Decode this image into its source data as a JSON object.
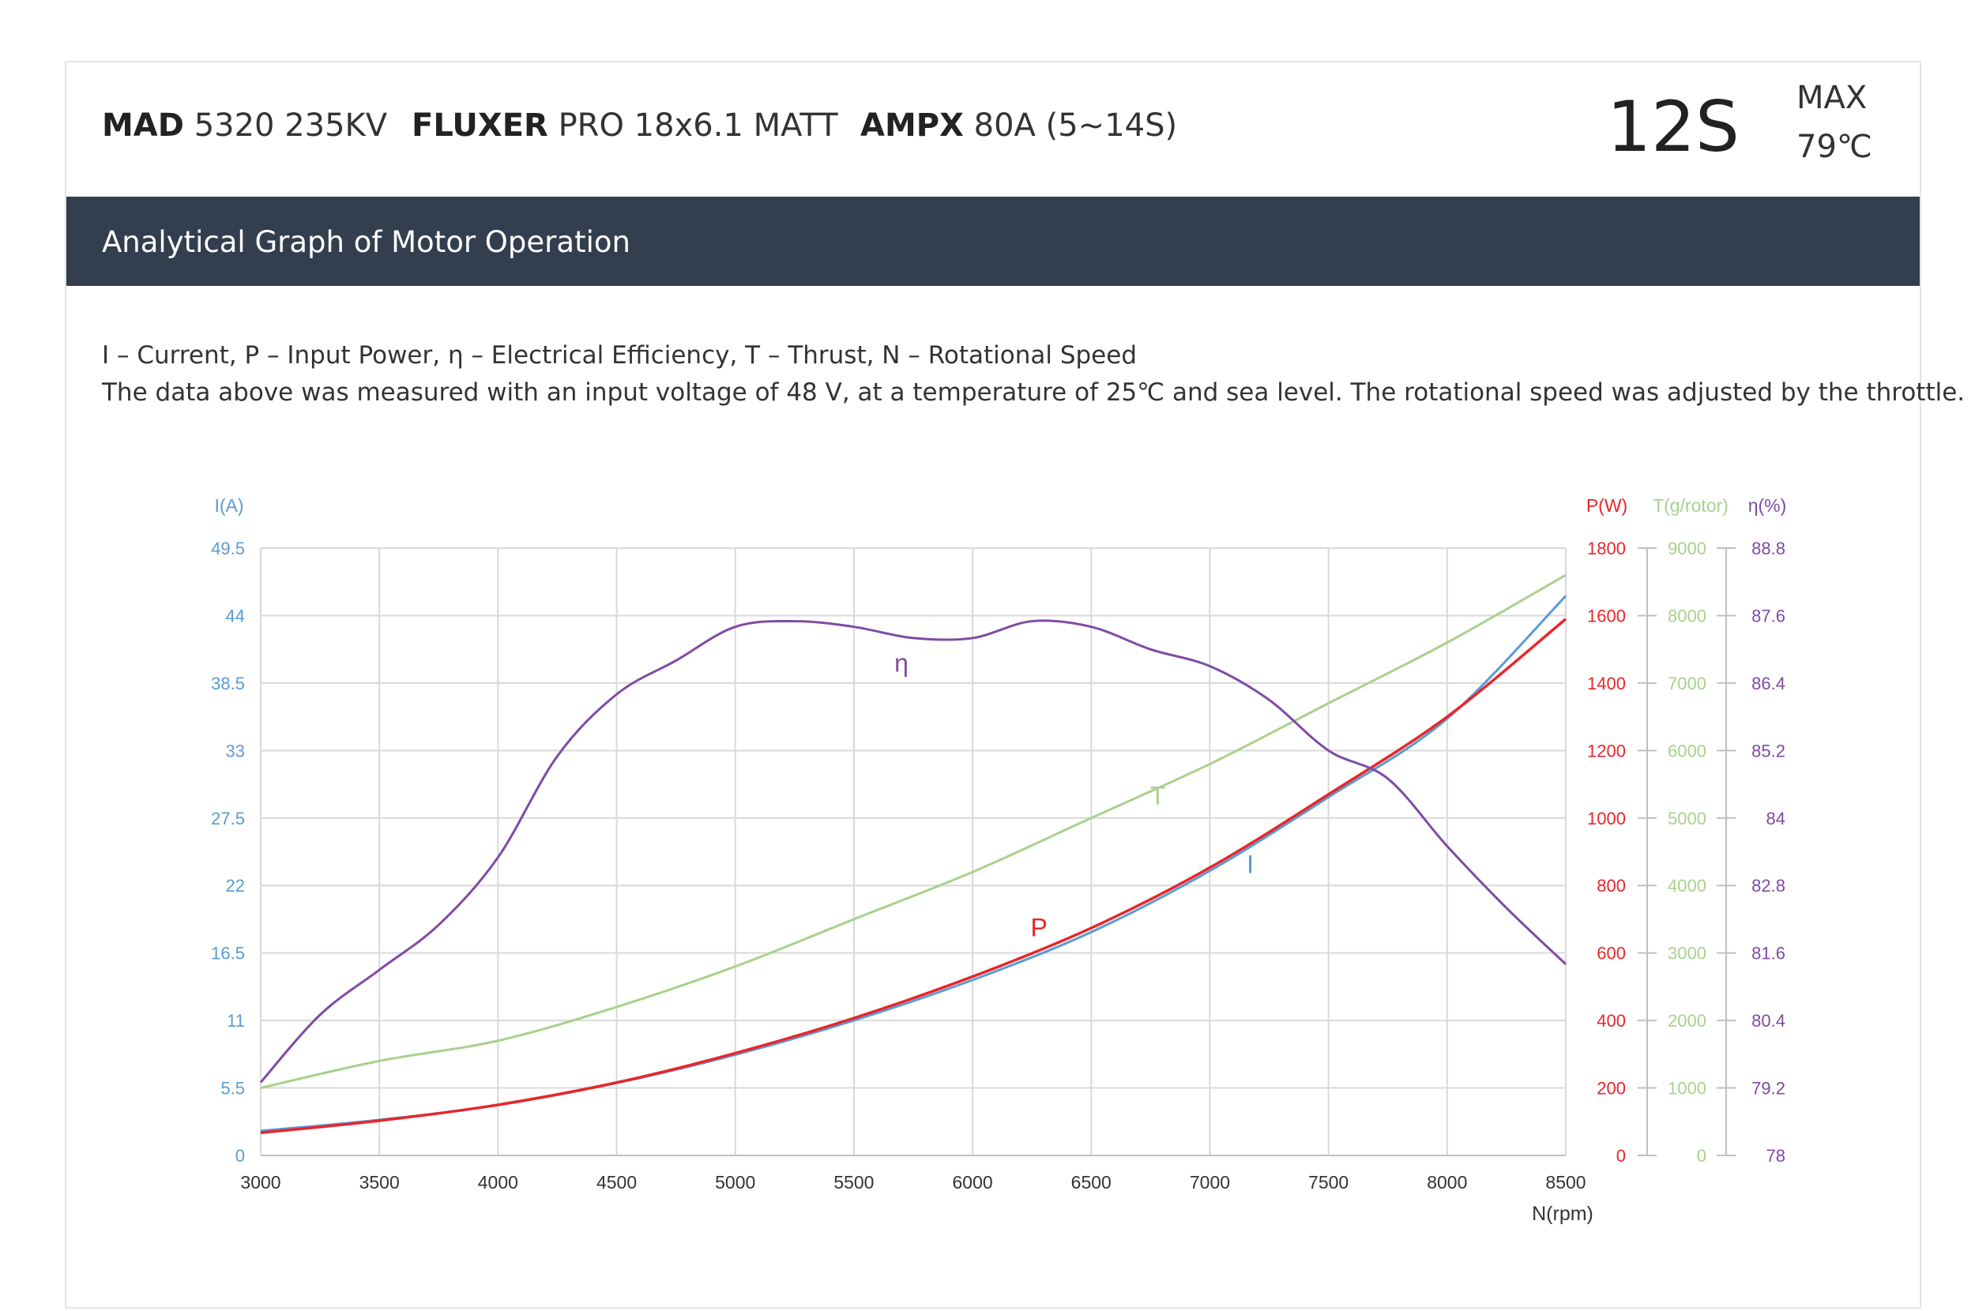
{
  "header": {
    "motor": {
      "brand": "MAD",
      "model": "5320 235KV"
    },
    "prop": {
      "brand": "FLUXER",
      "model": "PRO 18x6.1 MATT"
    },
    "esc": {
      "brand": "AMPX",
      "model": "80A (5~14S)"
    },
    "cells": "12S",
    "max_label": "MAX",
    "max_temp": "79℃"
  },
  "section_title": "Analytical Graph of Motor Operation",
  "legend_text": "I – Current, P – Input Power, η – Electrical Efficiency, T – Thrust,   N – Rotational Speed",
  "note_text": "The data above was measured with an input voltage of 48 V, at a temperature of 25℃ and sea level. The rotational speed was adjusted by the throttle.",
  "colors": {
    "current": "#5b9bd5",
    "power": "#e8262a",
    "thrust": "#a9d18e",
    "efficiency": "#7f4ba3",
    "band": "#333e4e",
    "grid": "#d9d9d9"
  },
  "chart_data": {
    "type": "line",
    "xlabel": "N(rpm)",
    "xlim": [
      3000,
      8500
    ],
    "x_ticks": [
      "3000",
      "3500",
      "4000",
      "4500",
      "5000",
      "5500",
      "6000",
      "6500",
      "7000",
      "7500",
      "8000",
      "8500"
    ],
    "axes": {
      "current": {
        "label": "I(A)",
        "range": [
          0,
          49.5
        ],
        "ticks": [
          "0",
          "5.5",
          "11",
          "16.5",
          "22",
          "27.5",
          "33",
          "38.5",
          "44",
          "49.5"
        ]
      },
      "power": {
        "label": "P(W)",
        "range": [
          0,
          1800
        ],
        "ticks": [
          "0",
          "200",
          "400",
          "600",
          "800",
          "1000",
          "1200",
          "1400",
          "1600",
          "1800"
        ]
      },
      "thrust": {
        "label": "T(g/rotor)",
        "range": [
          0,
          9000
        ],
        "ticks": [
          "0",
          "1000",
          "2000",
          "3000",
          "4000",
          "5000",
          "6000",
          "7000",
          "8000",
          "9000"
        ]
      },
      "efficiency": {
        "label": "η(%)",
        "range": [
          78,
          88.8
        ],
        "ticks": [
          "78",
          "79.2",
          "80.4",
          "81.6",
          "82.8",
          "84",
          "85.2",
          "86.4",
          "87.6",
          "88.8"
        ]
      }
    },
    "series": [
      {
        "name": "I",
        "axis": "current",
        "x": [
          3000,
          3500,
          4000,
          4500,
          5000,
          5500,
          6000,
          6500,
          7000,
          7500,
          8000,
          8500
        ],
        "y": [
          2.0,
          2.9,
          4.1,
          5.9,
          8.2,
          11.0,
          14.3,
          18.2,
          23.2,
          29.2,
          35.6,
          45.6
        ]
      },
      {
        "name": "P",
        "axis": "power",
        "x": [
          3000,
          3500,
          4000,
          4500,
          5000,
          5500,
          6000,
          6500,
          7000,
          7500,
          8000,
          8500
        ],
        "y": [
          67,
          103,
          150,
          216,
          303,
          407,
          530,
          674,
          853,
          1070,
          1300,
          1590
        ]
      },
      {
        "name": "T",
        "axis": "thrust",
        "x": [
          3000,
          3500,
          4000,
          4500,
          5000,
          5500,
          6000,
          6500,
          7000,
          7500,
          8000,
          8500
        ],
        "y": [
          1000,
          1400,
          1700,
          2200,
          2800,
          3500,
          4200,
          5000,
          5800,
          6700,
          7600,
          8600
        ]
      },
      {
        "name": "η",
        "axis": "efficiency",
        "x": [
          3000,
          3250,
          3500,
          3750,
          4000,
          4250,
          4500,
          4750,
          5000,
          5250,
          5500,
          5750,
          6000,
          6250,
          6500,
          6750,
          7000,
          7250,
          7500,
          7750,
          8000,
          8250,
          8500
        ],
        "y": [
          79.3,
          80.5,
          81.3,
          82.1,
          83.3,
          85.1,
          86.2,
          86.8,
          87.4,
          87.5,
          87.4,
          87.2,
          87.2,
          87.5,
          87.4,
          87.0,
          86.7,
          86.1,
          85.2,
          84.7,
          83.5,
          82.4,
          81.4
        ]
      }
    ],
    "series_labels": [
      {
        "text": "η",
        "x": 5700,
        "axis": "efficiency",
        "y": 86.6
      },
      {
        "text": "T",
        "x": 6780,
        "axis": "thrust",
        "y": 5200
      },
      {
        "text": "I",
        "x": 7170,
        "axis": "current",
        "y": 23.0
      },
      {
        "text": "P",
        "x": 6280,
        "axis": "power",
        "y": 650
      }
    ],
    "grid": true
  }
}
